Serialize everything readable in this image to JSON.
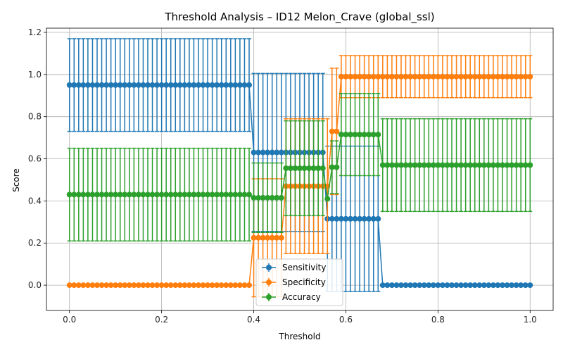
{
  "chart_data": {
    "type": "line",
    "title": "Threshold Analysis – ID12 Melon_Crave (global_ssl)",
    "xlabel": "Threshold",
    "ylabel": "Score",
    "xlim": [
      -0.05,
      1.05
    ],
    "ylim": [
      -0.12,
      1.22
    ],
    "x_ticks": [
      0.0,
      0.2,
      0.4,
      0.6,
      0.8,
      1.0
    ],
    "x_tick_labels": [
      "0.0",
      "0.2",
      "0.4",
      "0.6",
      "0.8",
      "1.0"
    ],
    "y_ticks": [
      0.0,
      0.2,
      0.4,
      0.6,
      0.8,
      1.0,
      1.2
    ],
    "y_tick_labels": [
      "0.0",
      "0.2",
      "0.4",
      "0.6",
      "0.8",
      "1.0",
      "1.2"
    ],
    "grid": true,
    "legend_position": "bottom-center",
    "x_step": 0.01,
    "series": [
      {
        "name": "Sensitivity",
        "color": "#1f77b4",
        "segments": [
          {
            "from": 0.0,
            "to": 0.39,
            "value": 0.95,
            "error": 0.22
          },
          {
            "from": 0.4,
            "to": 0.55,
            "value": 0.63,
            "error": 0.375
          },
          {
            "from": 0.56,
            "to": 0.67,
            "value": 0.315,
            "error": 0.345
          },
          {
            "from": 0.68,
            "to": 1.0,
            "value": 0.0,
            "error": 0.0
          }
        ]
      },
      {
        "name": "Specificity",
        "color": "#ff7f0e",
        "segments": [
          {
            "from": 0.0,
            "to": 0.39,
            "value": 0.0,
            "error": 0.0
          },
          {
            "from": 0.4,
            "to": 0.46,
            "value": 0.225,
            "error": 0.28
          },
          {
            "from": 0.47,
            "to": 0.56,
            "value": 0.47,
            "error": 0.32
          },
          {
            "from": 0.57,
            "to": 0.58,
            "value": 0.73,
            "error": 0.3
          },
          {
            "from": 0.59,
            "to": 1.0,
            "value": 0.99,
            "error": 0.1
          }
        ]
      },
      {
        "name": "Accuracy",
        "color": "#2ca02c",
        "segments": [
          {
            "from": 0.0,
            "to": 0.39,
            "value": 0.43,
            "error": 0.22
          },
          {
            "from": 0.4,
            "to": 0.46,
            "value": 0.415,
            "error": 0.165
          },
          {
            "from": 0.47,
            "to": 0.55,
            "value": 0.555,
            "error": 0.225
          },
          {
            "from": 0.56,
            "to": 0.56,
            "value": 0.41,
            "error": 0.0
          },
          {
            "from": 0.57,
            "to": 0.58,
            "value": 0.56,
            "error": 0.125
          },
          {
            "from": 0.59,
            "to": 0.67,
            "value": 0.715,
            "error": 0.195
          },
          {
            "from": 0.68,
            "to": 1.0,
            "value": 0.57,
            "error": 0.22
          }
        ]
      }
    ]
  }
}
